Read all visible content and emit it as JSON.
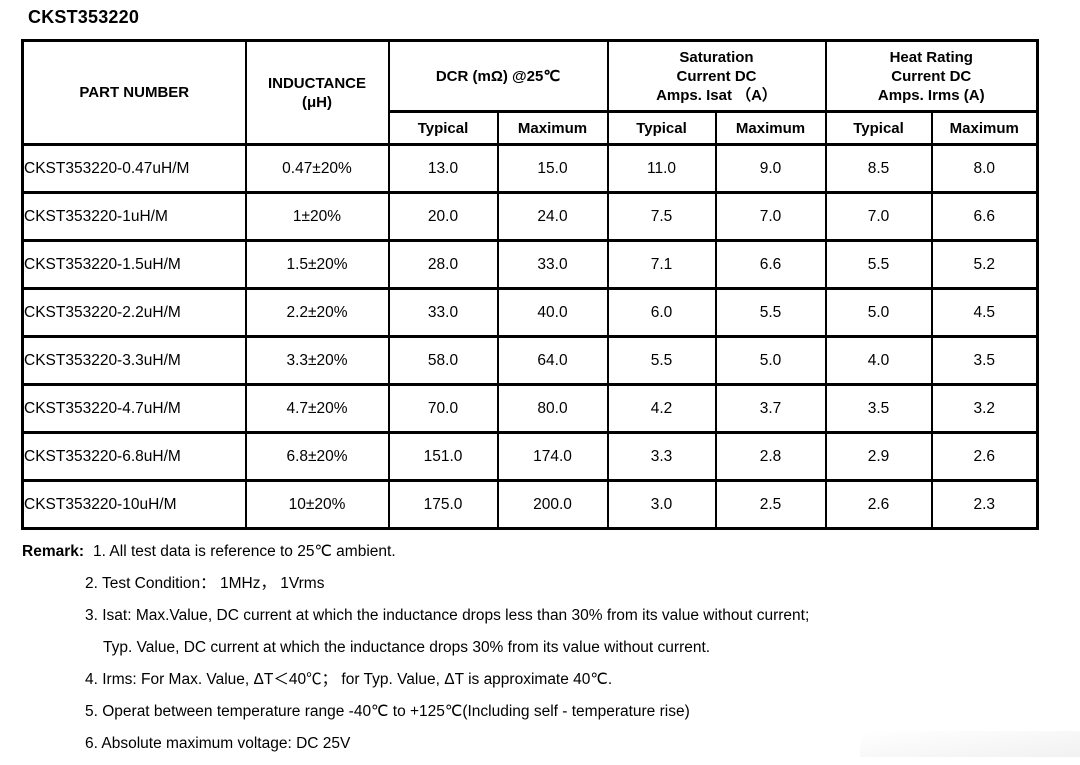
{
  "page": {
    "title": "CKST353220"
  },
  "colors": {
    "text": "#000000",
    "border": "#000000",
    "background": "#ffffff"
  },
  "table": {
    "headers": {
      "part_number": "PART NUMBER",
      "inductance": [
        "INDUCTANCE",
        "(μH)"
      ],
      "dcr": "DCR (mΩ) @25℃",
      "saturation": [
        "Saturation",
        "Current DC",
        "Amps. Isat （A）"
      ],
      "heat_rating": [
        "Heat Rating",
        "Current DC",
        "Amps. Irms (A)"
      ],
      "typical": "Typical",
      "maximum": "Maximum"
    },
    "rows": [
      {
        "part": "CKST353220-0.47uH/M",
        "inductance": "0.47±20%",
        "dcr_typical": "13.0",
        "dcr_maximum": "15.0",
        "isat_typical": "11.0",
        "isat_maximum": "9.0",
        "irms_typical": "8.5",
        "irms_maximum": "8.0"
      },
      {
        "part": "CKST353220-1uH/M",
        "inductance": "1±20%",
        "dcr_typical": "20.0",
        "dcr_maximum": "24.0",
        "isat_typical": "7.5",
        "isat_maximum": "7.0",
        "irms_typical": "7.0",
        "irms_maximum": "6.6"
      },
      {
        "part": "CKST353220-1.5uH/M",
        "inductance": "1.5±20%",
        "dcr_typical": "28.0",
        "dcr_maximum": "33.0",
        "isat_typical": "7.1",
        "isat_maximum": "6.6",
        "irms_typical": "5.5",
        "irms_maximum": "5.2"
      },
      {
        "part": "CKST353220-2.2uH/M",
        "inductance": "2.2±20%",
        "dcr_typical": "33.0",
        "dcr_maximum": "40.0",
        "isat_typical": "6.0",
        "isat_maximum": "5.5",
        "irms_typical": "5.0",
        "irms_maximum": "4.5"
      },
      {
        "part": "CKST353220-3.3uH/M",
        "inductance": "3.3±20%",
        "dcr_typical": "58.0",
        "dcr_maximum": "64.0",
        "isat_typical": "5.5",
        "isat_maximum": "5.0",
        "irms_typical": "4.0",
        "irms_maximum": "3.5"
      },
      {
        "part": "CKST353220-4.7uH/M",
        "inductance": "4.7±20%",
        "dcr_typical": "70.0",
        "dcr_maximum": "80.0",
        "isat_typical": "4.2",
        "isat_maximum": "3.7",
        "irms_typical": "3.5",
        "irms_maximum": "3.2"
      },
      {
        "part": "CKST353220-6.8uH/M",
        "inductance": "6.8±20%",
        "dcr_typical": "151.0",
        "dcr_maximum": "174.0",
        "isat_typical": "3.3",
        "isat_maximum": "2.8",
        "irms_typical": "2.9",
        "irms_maximum": "2.6"
      },
      {
        "part": "CKST353220-10uH/M",
        "inductance": "10±20%",
        "dcr_typical": "175.0",
        "dcr_maximum": "200.0",
        "isat_typical": "3.0",
        "isat_maximum": "2.5",
        "irms_typical": "2.6",
        "irms_maximum": "2.3"
      }
    ]
  },
  "remarks": {
    "label": "Remark:",
    "items": [
      {
        "text": "1. All test data is reference to 25℃ ambient.",
        "cont": false
      },
      {
        "text": "2. Test Condition： 1MHz， 1Vrms",
        "cont": false
      },
      {
        "text": "3. Isat: Max.Value, DC current at which the inductance drops less than 30% from its value without current;",
        "cont": false
      },
      {
        "text": "Typ. Value, DC current at which the inductance drops 30% from its value without current.",
        "cont": true
      },
      {
        "text": "4. Irms: For Max. Value, ΔT＜40℃； for Typ. Value, ΔT is approximate 40℃.",
        "cont": false
      },
      {
        "text": "5. Operat between temperature range -40℃ to +125℃(Including self - temperature rise)",
        "cont": false
      },
      {
        "text": "6. Absolute maximum voltage: DC 25V",
        "cont": false
      }
    ]
  }
}
